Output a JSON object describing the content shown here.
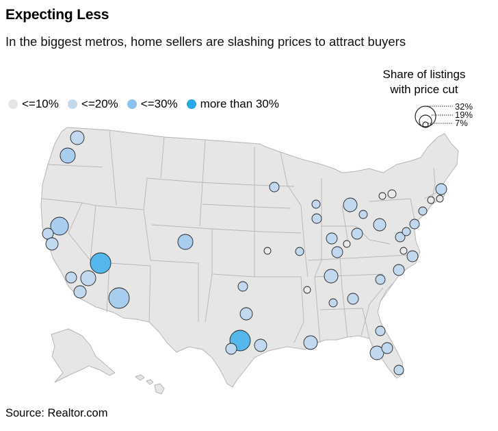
{
  "title": "Expecting Less",
  "subtitle": "In the biggest metros, home sellers are slashing prices to attract buyers",
  "legend": {
    "items": [
      {
        "label": "<=10%",
        "color": "#e6e6e6"
      },
      {
        "label": "<=20%",
        "color": "#c2d8ef"
      },
      {
        "label": "<=30%",
        "color": "#8cc2ee"
      },
      {
        "label": "more than 30%",
        "color": "#29a8e9"
      }
    ]
  },
  "size_legend": {
    "title_line1": "Share of listings",
    "title_line2": "with price cut",
    "labels": [
      "32%",
      "19%",
      "7%"
    ]
  },
  "colors": {
    "land": "#e6e6e6",
    "border": "#b5b5b5",
    "bubble_stroke": "#222222"
  },
  "source": "Source: Realtor.com"
}
